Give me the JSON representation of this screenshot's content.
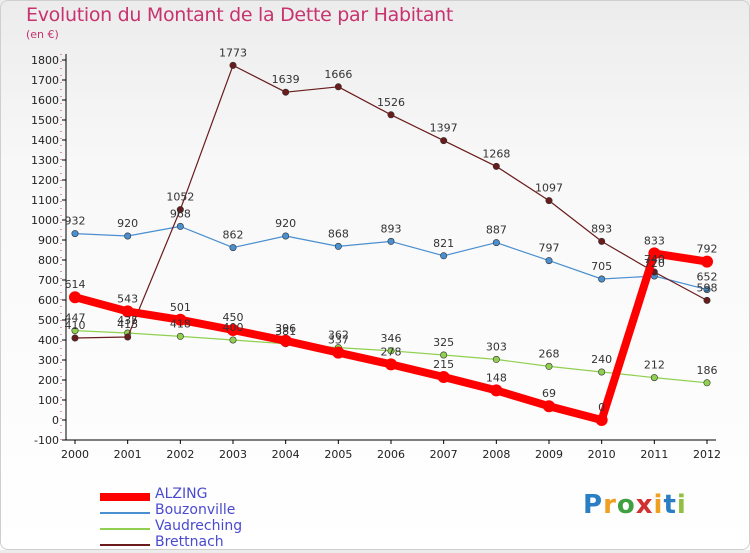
{
  "title": "Evolution du Montant de la Dette par Habitant",
  "subtitle": "(en €)",
  "chart_data": {
    "type": "line",
    "title": "Evolution du Montant de la Dette par Habitant",
    "subtitle": "(en €)",
    "x": [
      "2000",
      "2001",
      "2002",
      "2003",
      "2004",
      "2005",
      "2006",
      "2007",
      "2008",
      "2009",
      "2010",
      "2011",
      "2012"
    ],
    "ylim": [
      -100,
      1800
    ],
    "yticks": [
      -100,
      0,
      100,
      200,
      300,
      400,
      500,
      600,
      700,
      800,
      900,
      1000,
      1100,
      1200,
      1300,
      1400,
      1500,
      1600,
      1700,
      1800
    ],
    "grid": false,
    "legend_position": "bottom-left",
    "series": [
      {
        "name": "ALZING",
        "color": "#ff0000",
        "values": [
          614,
          543,
          501,
          450,
          396,
          337,
          278,
          215,
          148,
          69,
          0,
          833,
          792
        ],
        "labels": [
          "614",
          "543",
          "501",
          "450",
          "396",
          "337",
          "278",
          "215",
          "148",
          "69",
          "0",
          "833",
          "792"
        ]
      },
      {
        "name": "Bouzonville",
        "color": "#4a8fcf",
        "values": [
          932,
          920,
          968,
          862,
          920,
          868,
          893,
          821,
          887,
          797,
          705,
          720,
          652
        ],
        "labels": [
          "932",
          "920",
          "968",
          "862",
          "920",
          "868",
          "893",
          "821",
          "887",
          "797",
          "705",
          "720",
          "652"
        ]
      },
      {
        "name": "Vaudreching",
        "color": "#90d050",
        "values": [
          447,
          435,
          418,
          400,
          381,
          362,
          346,
          325,
          303,
          268,
          240,
          212,
          186
        ],
        "labels": [
          "447",
          "435",
          "418",
          "400",
          "381",
          "362",
          "346",
          "325",
          "303",
          "268",
          "240",
          "212",
          "186"
        ]
      },
      {
        "name": "Brettnach",
        "color": "#6a1b1b",
        "values": [
          410,
          415,
          1052,
          1773,
          1639,
          1666,
          1526,
          1397,
          1268,
          1097,
          893,
          740,
          598
        ],
        "labels": [
          "410",
          "415",
          "1052",
          "1773",
          "1639",
          "1666",
          "1526",
          "1397",
          "1268",
          "1097",
          "893",
          "740",
          "598"
        ]
      }
    ]
  },
  "logo": {
    "letters": [
      "P",
      "r",
      "o",
      "x",
      "i",
      "t",
      "i"
    ],
    "colors": [
      "#2a7fc4",
      "#f0a020",
      "#40a040",
      "#d03030",
      "#f0a020",
      "#2a7fc4",
      "#90c040"
    ]
  }
}
